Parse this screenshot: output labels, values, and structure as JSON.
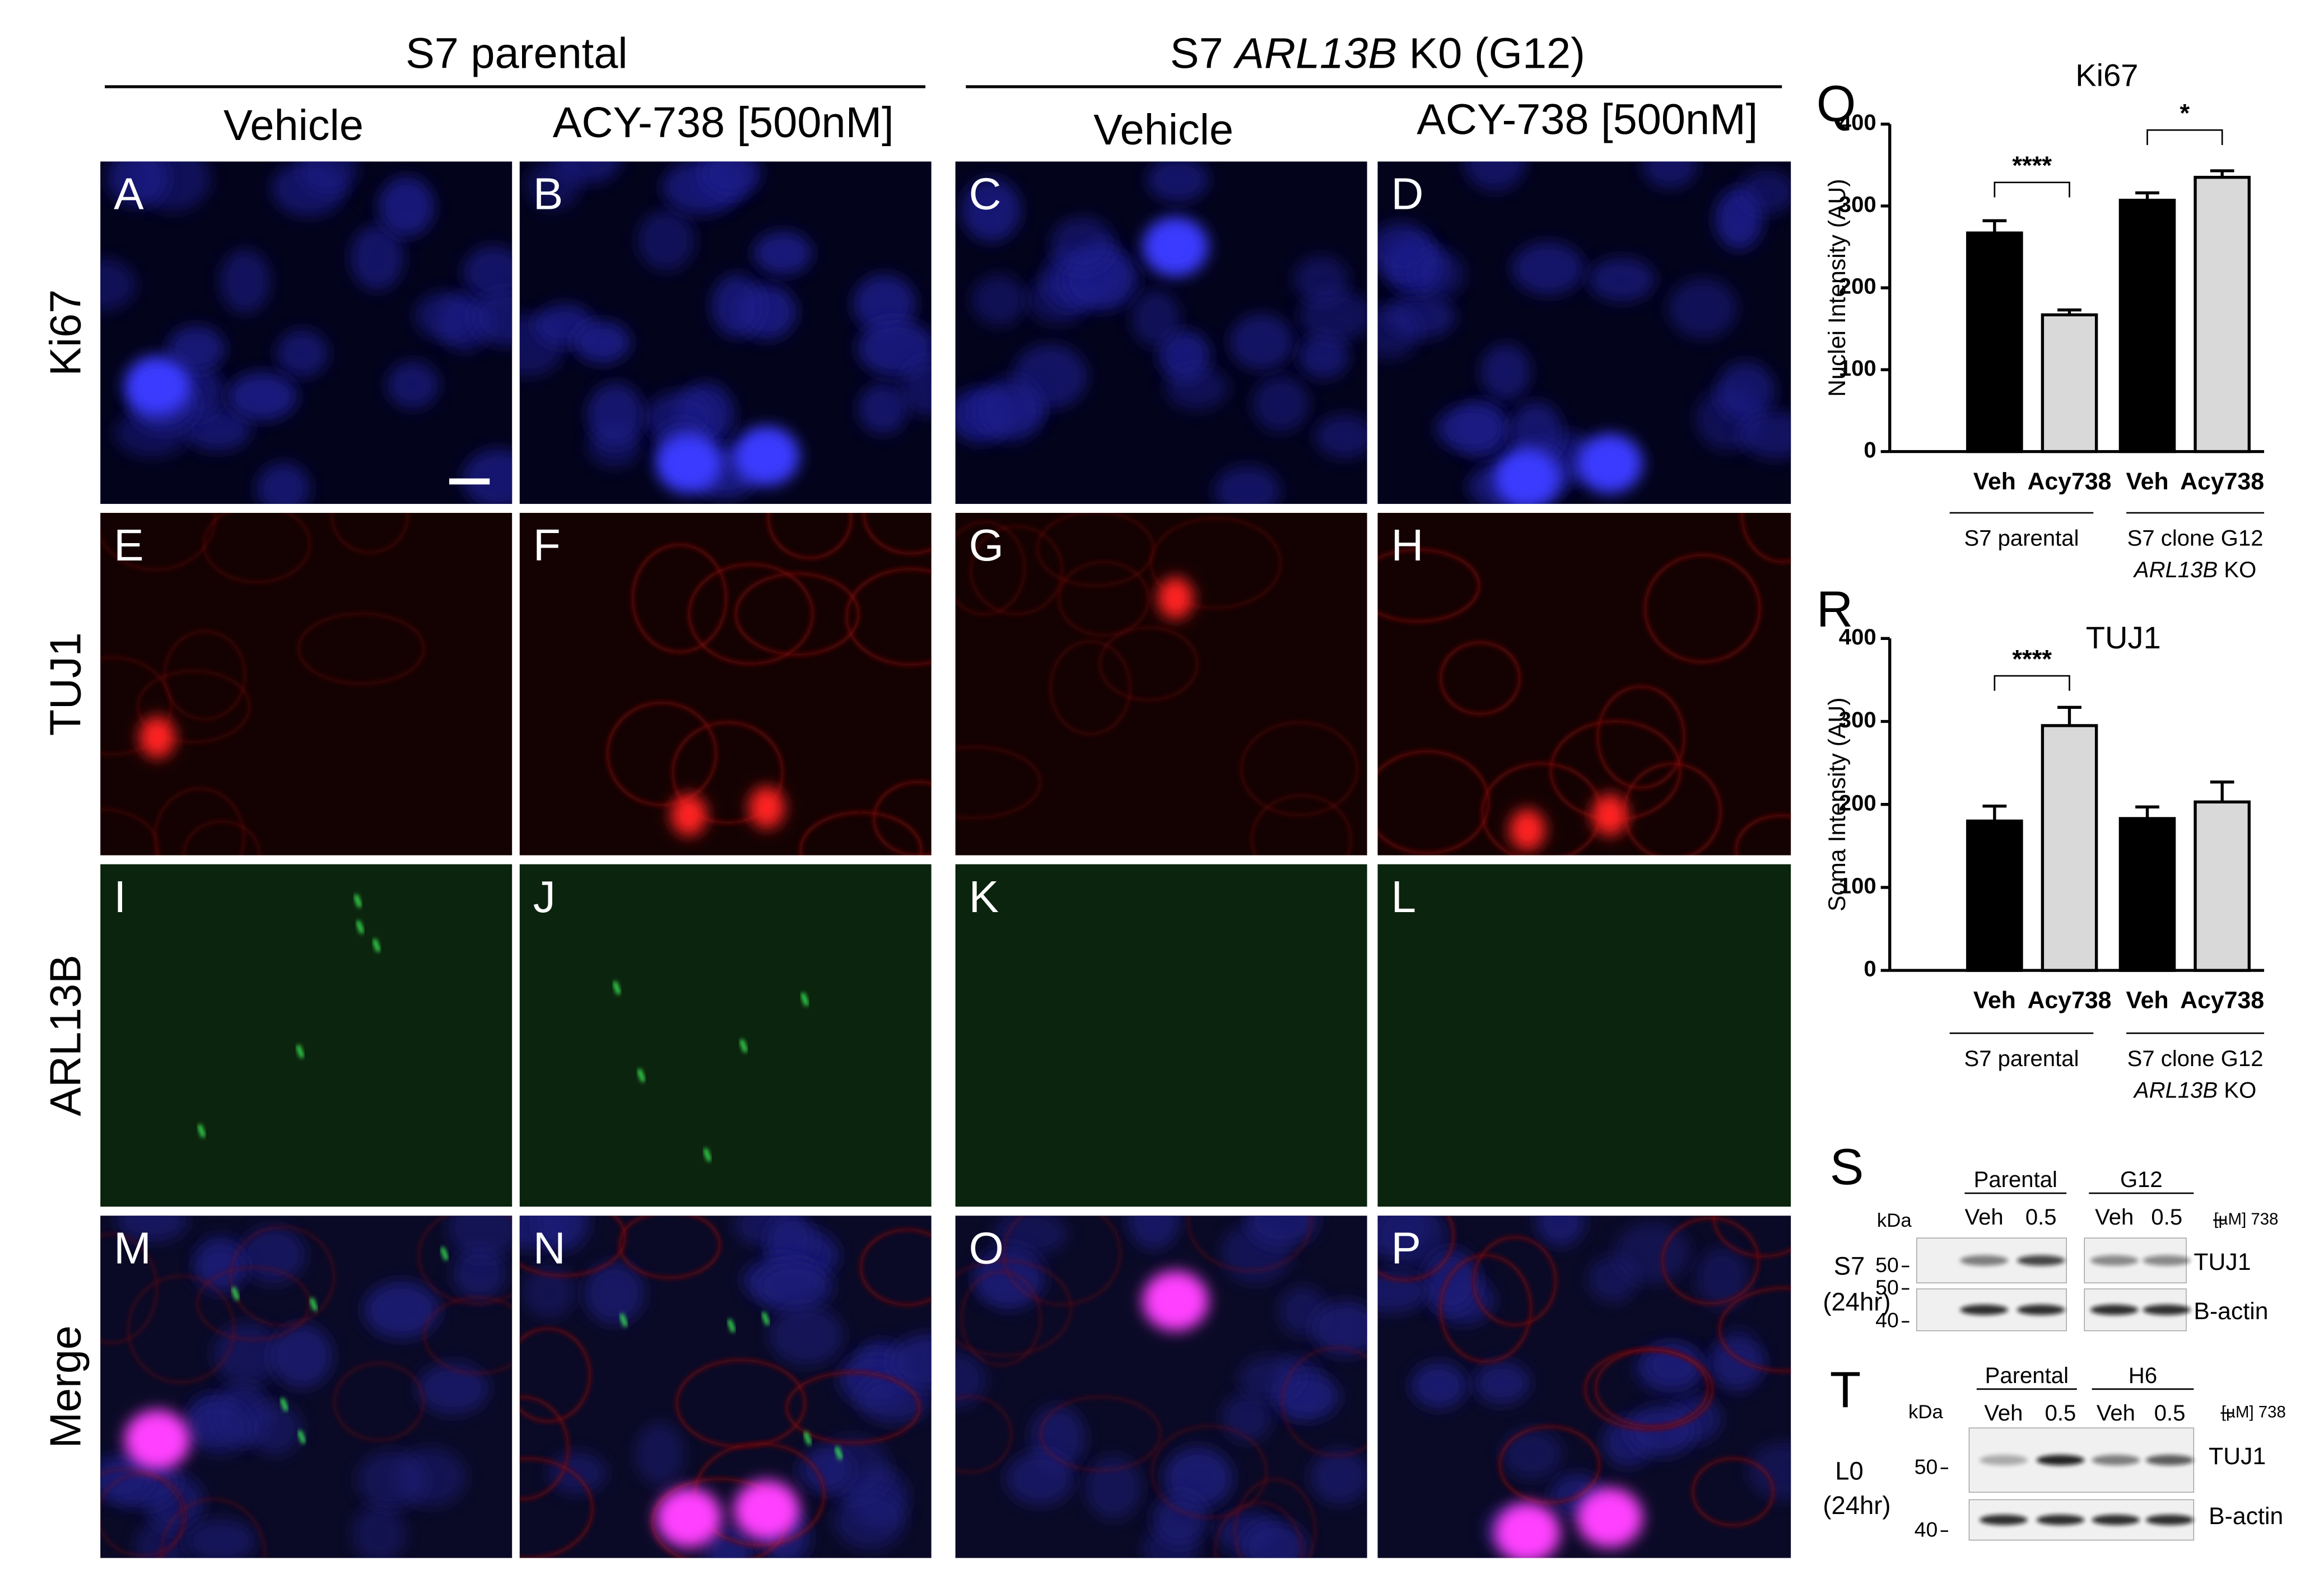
{
  "figure": {
    "groups": [
      {
        "parts": [
          "S7 parental"
        ]
      },
      {
        "parts": [
          "S7 ",
          "ARL13B",
          " K0 (G12)"
        ]
      }
    ],
    "conditions": [
      "Vehicle",
      "ACY-738 [500nM]",
      "Vehicle",
      "ACY-738 [500nM]"
    ],
    "rows": [
      "Ki67",
      "TUJ1",
      "ARL13B",
      "Merge"
    ],
    "panels": [
      "A",
      "B",
      "C",
      "D",
      "E",
      "F",
      "G",
      "H",
      "I",
      "J",
      "K",
      "L",
      "M",
      "N",
      "O",
      "P"
    ]
  },
  "chart_data": [
    {
      "type": "bar",
      "letter": "Q",
      "title": "Ki67",
      "y_label": "Nuclei Intensity (AU)",
      "categories": [
        "Veh",
        "Acy738",
        "Veh",
        "Acy738"
      ],
      "values": [
        267,
        167,
        307,
        335
      ],
      "errors": [
        15,
        6,
        9,
        8
      ],
      "colors": [
        "#000000",
        "#d9d9d9",
        "#000000",
        "#d9d9d9"
      ],
      "ylim": [
        0,
        400
      ],
      "yticks": [
        0,
        100,
        200,
        300,
        400
      ],
      "significance": [
        "****",
        "*"
      ],
      "groups": [
        {
          "lines": [
            "S7 parental"
          ]
        },
        {
          "lines": [
            "S7 clone G12"
          ],
          "italic": "ARL13B",
          "suffix": " KO"
        }
      ]
    },
    {
      "type": "bar",
      "letter": "R",
      "title": "TUJ1",
      "y_label": "Soma Intensity (AU)",
      "categories": [
        "Veh",
        "Acy738",
        "Veh",
        "Acy738"
      ],
      "values": [
        180,
        295,
        183,
        203
      ],
      "errors": [
        18,
        22,
        14,
        24
      ],
      "colors": [
        "#000000",
        "#d9d9d9",
        "#000000",
        "#d9d9d9"
      ],
      "ylim": [
        0,
        400
      ],
      "yticks": [
        0,
        100,
        200,
        300,
        400
      ],
      "significance": [
        "****"
      ],
      "groups": [
        {
          "lines": [
            "S7 parental"
          ]
        },
        {
          "lines": [
            "S7 clone G12"
          ],
          "italic": "ARL13B",
          "suffix": " KO"
        }
      ]
    }
  ],
  "blots": [
    {
      "letter": "S",
      "kda": "kDa",
      "cell": "S7",
      "time": "(24hr)",
      "groups": [
        "Parental",
        "G12"
      ],
      "lanes": [
        "Veh",
        "0.5",
        "Veh",
        "0.5"
      ],
      "dose": "[µM] 738",
      "markers": [
        50,
        50,
        40
      ],
      "proteins": [
        "TUJ1",
        "B-actin"
      ]
    },
    {
      "letter": "T",
      "kda": "kDa",
      "cell": "L0",
      "time": "(24hr)",
      "groups": [
        "Parental",
        "H6"
      ],
      "lanes": [
        "Veh",
        "0.5",
        "Veh",
        "0.5"
      ],
      "dose": "[µM] 738",
      "markers": [
        50,
        40
      ],
      "proteins": [
        "TUJ1",
        "B-actin"
      ]
    }
  ]
}
